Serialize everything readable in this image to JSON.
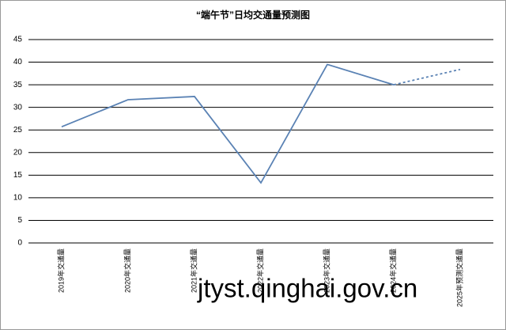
{
  "chart_data": {
    "type": "line",
    "title": "“端午节”日均交通量预测图",
    "categories": [
      "2019年交通量",
      "2020年交通量",
      "2021年交通量",
      "2022年交通量",
      "2023年交通量",
      "2024年交通量",
      "2025年预测交通量"
    ],
    "values": [
      25.7,
      31.7,
      32.4,
      13.3,
      39.5,
      35,
      38.4
    ],
    "dashed": [
      false,
      false,
      false,
      false,
      false,
      false,
      true
    ],
    "color": "#5a82b4",
    "ylim": [
      0,
      45
    ],
    "yticks": [
      0,
      5,
      10,
      15,
      20,
      25,
      30,
      35,
      40,
      45
    ],
    "grid": true
  },
  "watermark": "jtyst.qinghai.gov.cn"
}
